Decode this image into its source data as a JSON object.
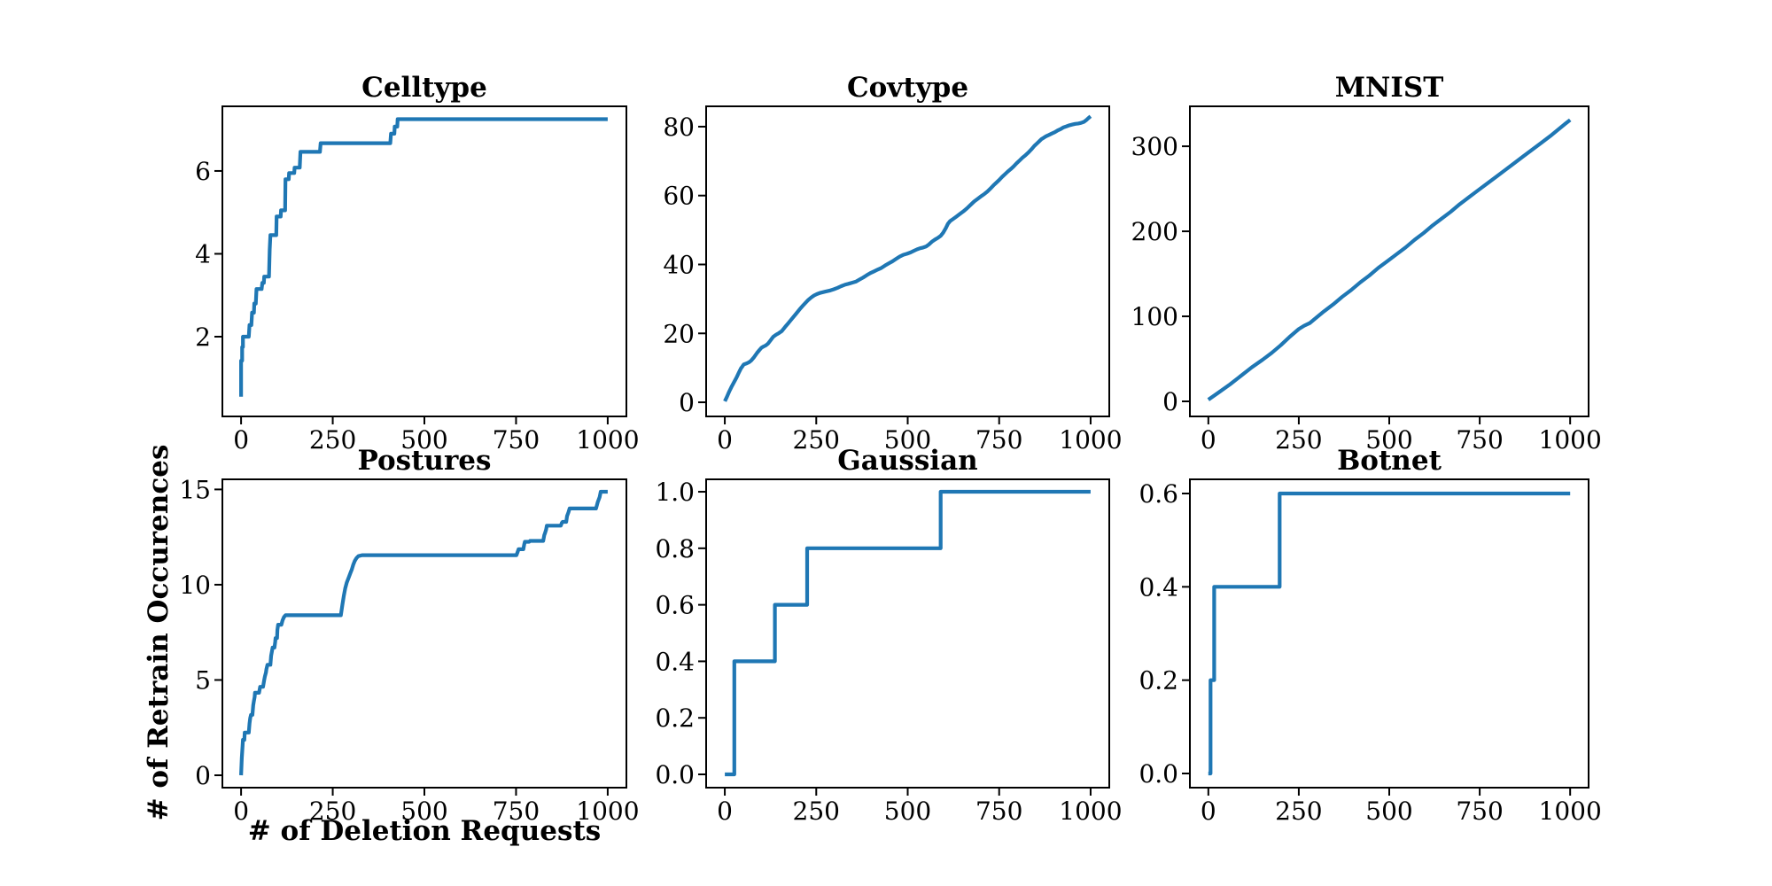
{
  "figure": {
    "background": "#ffffff",
    "line_color": "#1f77b4",
    "ylabel": "# of Retrain Occurences",
    "xlabel": "# of Deletion Requests"
  },
  "chart_data": [
    {
      "type": "line",
      "title": "Celltype",
      "xlabel": "",
      "ylabel": "",
      "xlim": [
        -51,
        1051
      ],
      "ylim": [
        0.075,
        7.56
      ],
      "x_ticks": [
        0,
        250,
        500,
        750,
        1000
      ],
      "x_tick_labels": [
        "0",
        "250",
        "500",
        "750",
        "1000"
      ],
      "y_ticks": [
        2,
        4,
        6
      ],
      "y_tick_labels": [
        "2",
        "4",
        "6"
      ],
      "grid": false,
      "points": [
        [
          0,
          0.55
        ],
        [
          0,
          1.42
        ],
        [
          3,
          1.42
        ],
        [
          3,
          1.75
        ],
        [
          5,
          1.75
        ],
        [
          5,
          2.0
        ],
        [
          21,
          2.0
        ],
        [
          23,
          2.28
        ],
        [
          28,
          2.28
        ],
        [
          30,
          2.58
        ],
        [
          35,
          2.58
        ],
        [
          36,
          2.8
        ],
        [
          40,
          2.8
        ],
        [
          42,
          3.15
        ],
        [
          56,
          3.15
        ],
        [
          58,
          3.3
        ],
        [
          62,
          3.3
        ],
        [
          63,
          3.45
        ],
        [
          76,
          3.45
        ],
        [
          78,
          4.1
        ],
        [
          80,
          4.45
        ],
        [
          96,
          4.45
        ],
        [
          97,
          4.9
        ],
        [
          108,
          4.9
        ],
        [
          109,
          5.05
        ],
        [
          120,
          5.05
        ],
        [
          121,
          5.8
        ],
        [
          130,
          5.8
        ],
        [
          131,
          5.95
        ],
        [
          145,
          5.95
        ],
        [
          146,
          6.08
        ],
        [
          160,
          6.08
        ],
        [
          162,
          6.46
        ],
        [
          215,
          6.46
        ],
        [
          217,
          6.67
        ],
        [
          407,
          6.67
        ],
        [
          409,
          6.9
        ],
        [
          418,
          6.9
        ],
        [
          419,
          7.07
        ],
        [
          426,
          7.07
        ],
        [
          427,
          7.25
        ],
        [
          1000,
          7.25
        ]
      ]
    },
    {
      "type": "line",
      "title": "Covtype",
      "xlabel": "",
      "ylabel": "",
      "xlim": [
        -51,
        1051
      ],
      "ylim": [
        -4.1,
        85.9
      ],
      "x_ticks": [
        0,
        250,
        500,
        750,
        1000
      ],
      "x_tick_labels": [
        "0",
        "250",
        "500",
        "750",
        "1000"
      ],
      "y_ticks": [
        0,
        20,
        40,
        60,
        80
      ],
      "y_tick_labels": [
        "0",
        "20",
        "40",
        "60",
        "80"
      ],
      "grid": false,
      "points": [
        [
          0,
          0.3
        ],
        [
          6,
          1.6
        ],
        [
          12,
          3.1
        ],
        [
          18,
          4.4
        ],
        [
          25,
          5.8
        ],
        [
          32,
          7.2
        ],
        [
          38,
          8.5
        ],
        [
          44,
          9.8
        ],
        [
          48,
          10.4
        ],
        [
          52,
          11.0
        ],
        [
          60,
          11.3
        ],
        [
          66,
          11.6
        ],
        [
          72,
          12.1
        ],
        [
          80,
          13.1
        ],
        [
          88,
          14.3
        ],
        [
          95,
          15.2
        ],
        [
          100,
          15.8
        ],
        [
          106,
          16.2
        ],
        [
          112,
          16.5
        ],
        [
          118,
          17.0
        ],
        [
          125,
          18.0
        ],
        [
          132,
          19.0
        ],
        [
          140,
          19.6
        ],
        [
          148,
          20.1
        ],
        [
          156,
          20.7
        ],
        [
          165,
          21.9
        ],
        [
          174,
          23.0
        ],
        [
          184,
          24.3
        ],
        [
          194,
          25.6
        ],
        [
          204,
          26.9
        ],
        [
          212,
          27.9
        ],
        [
          220,
          28.8
        ],
        [
          228,
          29.7
        ],
        [
          236,
          30.4
        ],
        [
          244,
          31.0
        ],
        [
          252,
          31.4
        ],
        [
          262,
          31.8
        ],
        [
          274,
          32.1
        ],
        [
          286,
          32.4
        ],
        [
          298,
          32.8
        ],
        [
          308,
          33.2
        ],
        [
          318,
          33.7
        ],
        [
          328,
          34.1
        ],
        [
          338,
          34.4
        ],
        [
          348,
          34.7
        ],
        [
          358,
          35.0
        ],
        [
          368,
          35.6
        ],
        [
          378,
          36.2
        ],
        [
          388,
          36.9
        ],
        [
          398,
          37.5
        ],
        [
          408,
          38.0
        ],
        [
          418,
          38.5
        ],
        [
          428,
          39.0
        ],
        [
          438,
          39.7
        ],
        [
          448,
          40.3
        ],
        [
          458,
          40.9
        ],
        [
          468,
          41.6
        ],
        [
          478,
          42.3
        ],
        [
          488,
          42.8
        ],
        [
          498,
          43.1
        ],
        [
          508,
          43.5
        ],
        [
          518,
          44.0
        ],
        [
          526,
          44.4
        ],
        [
          534,
          44.7
        ],
        [
          542,
          44.9
        ],
        [
          550,
          45.2
        ],
        [
          558,
          45.8
        ],
        [
          566,
          46.6
        ],
        [
          574,
          47.2
        ],
        [
          582,
          47.7
        ],
        [
          590,
          48.3
        ],
        [
          597,
          49.2
        ],
        [
          604,
          50.5
        ],
        [
          610,
          51.8
        ],
        [
          616,
          52.6
        ],
        [
          624,
          53.2
        ],
        [
          632,
          53.8
        ],
        [
          642,
          54.6
        ],
        [
          652,
          55.4
        ],
        [
          662,
          56.3
        ],
        [
          672,
          57.3
        ],
        [
          682,
          58.3
        ],
        [
          692,
          59.1
        ],
        [
          702,
          59.9
        ],
        [
          710,
          60.5
        ],
        [
          718,
          61.2
        ],
        [
          726,
          62.0
        ],
        [
          734,
          62.9
        ],
        [
          742,
          63.7
        ],
        [
          750,
          64.5
        ],
        [
          758,
          65.4
        ],
        [
          766,
          66.2
        ],
        [
          774,
          67.0
        ],
        [
          782,
          67.7
        ],
        [
          790,
          68.5
        ],
        [
          798,
          69.4
        ],
        [
          806,
          70.2
        ],
        [
          814,
          71.0
        ],
        [
          822,
          71.7
        ],
        [
          830,
          72.5
        ],
        [
          838,
          73.4
        ],
        [
          846,
          74.4
        ],
        [
          854,
          75.2
        ],
        [
          860,
          75.8
        ],
        [
          866,
          76.4
        ],
        [
          872,
          76.8
        ],
        [
          878,
          77.2
        ],
        [
          886,
          77.6
        ],
        [
          894,
          78.0
        ],
        [
          902,
          78.4
        ],
        [
          910,
          78.9
        ],
        [
          918,
          79.3
        ],
        [
          926,
          79.8
        ],
        [
          934,
          80.1
        ],
        [
          942,
          80.4
        ],
        [
          950,
          80.6
        ],
        [
          958,
          80.8
        ],
        [
          966,
          80.9
        ],
        [
          974,
          81.1
        ],
        [
          982,
          81.4
        ],
        [
          988,
          81.9
        ],
        [
          993,
          82.4
        ],
        [
          1000,
          83.0
        ]
      ]
    },
    {
      "type": "line",
      "title": "MNIST",
      "xlabel": "",
      "ylabel": "",
      "xlim": [
        -51,
        1051
      ],
      "ylim": [
        -17.7,
        347
      ],
      "x_ticks": [
        0,
        250,
        500,
        750,
        1000
      ],
      "x_tick_labels": [
        "0",
        "250",
        "500",
        "750",
        "1000"
      ],
      "y_ticks": [
        0,
        100,
        200,
        300
      ],
      "y_tick_labels": [
        "0",
        "100",
        "200",
        "300"
      ],
      "grid": false,
      "points": [
        [
          0,
          2
        ],
        [
          30,
          11
        ],
        [
          60,
          20
        ],
        [
          90,
          30
        ],
        [
          120,
          40
        ],
        [
          150,
          49
        ],
        [
          175,
          57
        ],
        [
          200,
          66
        ],
        [
          225,
          76
        ],
        [
          250,
          85
        ],
        [
          265,
          89
        ],
        [
          280,
          92
        ],
        [
          300,
          99
        ],
        [
          320,
          106
        ],
        [
          345,
          114
        ],
        [
          370,
          123
        ],
        [
          395,
          131
        ],
        [
          420,
          140
        ],
        [
          445,
          148
        ],
        [
          470,
          157
        ],
        [
          495,
          165
        ],
        [
          520,
          173
        ],
        [
          545,
          181
        ],
        [
          570,
          190
        ],
        [
          595,
          198
        ],
        [
          620,
          207
        ],
        [
          645,
          215
        ],
        [
          670,
          223
        ],
        [
          695,
          232
        ],
        [
          720,
          240
        ],
        [
          745,
          248
        ],
        [
          770,
          256
        ],
        [
          795,
          264
        ],
        [
          820,
          272
        ],
        [
          845,
          280
        ],
        [
          870,
          288
        ],
        [
          895,
          296
        ],
        [
          920,
          304
        ],
        [
          945,
          312
        ],
        [
          965,
          319
        ],
        [
          985,
          326
        ],
        [
          1000,
          331
        ]
      ]
    },
    {
      "type": "line",
      "title": "Postures",
      "xlabel": "# of Deletion Requests",
      "ylabel": "# of Retrain Occurences",
      "xlim": [
        -51,
        1051
      ],
      "ylim": [
        -0.65,
        15.53
      ],
      "x_ticks": [
        0,
        250,
        500,
        750,
        1000
      ],
      "x_tick_labels": [
        "0",
        "250",
        "500",
        "750",
        "1000"
      ],
      "y_ticks": [
        0,
        5,
        10,
        15
      ],
      "y_tick_labels": [
        "0",
        "5",
        "10",
        "15"
      ],
      "grid": false,
      "points": [
        [
          0,
          0
        ],
        [
          2,
          0.9
        ],
        [
          4,
          1.55
        ],
        [
          5,
          1.86
        ],
        [
          9,
          1.86
        ],
        [
          10,
          2.24
        ],
        [
          21,
          2.24
        ],
        [
          23,
          2.7
        ],
        [
          25,
          3.0
        ],
        [
          27,
          3.17
        ],
        [
          31,
          3.17
        ],
        [
          33,
          3.67
        ],
        [
          35,
          3.9
        ],
        [
          37,
          4.1
        ],
        [
          38,
          4.33
        ],
        [
          49,
          4.33
        ],
        [
          52,
          4.64
        ],
        [
          60,
          4.64
        ],
        [
          63,
          5.0
        ],
        [
          65,
          5.19
        ],
        [
          68,
          5.4
        ],
        [
          69,
          5.57
        ],
        [
          72,
          5.8
        ],
        [
          80,
          5.8
        ],
        [
          82,
          6.27
        ],
        [
          85,
          6.6
        ],
        [
          86,
          6.7
        ],
        [
          91,
          6.7
        ],
        [
          93,
          7.0
        ],
        [
          94,
          7.2
        ],
        [
          98,
          7.2
        ],
        [
          99,
          7.63
        ],
        [
          101,
          7.9
        ],
        [
          110,
          7.9
        ],
        [
          113,
          8.13
        ],
        [
          117,
          8.3
        ],
        [
          121,
          8.4
        ],
        [
          272,
          8.4
        ],
        [
          276,
          8.9
        ],
        [
          280,
          9.4
        ],
        [
          284,
          9.8
        ],
        [
          288,
          10.1
        ],
        [
          294,
          10.4
        ],
        [
          298,
          10.6
        ],
        [
          302,
          10.8
        ],
        [
          306,
          11.05
        ],
        [
          310,
          11.25
        ],
        [
          315,
          11.4
        ],
        [
          320,
          11.5
        ],
        [
          330,
          11.55
        ],
        [
          751,
          11.55
        ],
        [
          754,
          11.7
        ],
        [
          757,
          11.86
        ],
        [
          770,
          11.86
        ],
        [
          772,
          12.1
        ],
        [
          774,
          12.25
        ],
        [
          786,
          12.25
        ],
        [
          788,
          12.3
        ],
        [
          824,
          12.3
        ],
        [
          827,
          12.6
        ],
        [
          829,
          12.7
        ],
        [
          832,
          12.9
        ],
        [
          834,
          13.1
        ],
        [
          872,
          13.1
        ],
        [
          875,
          13.25
        ],
        [
          877,
          13.3
        ],
        [
          887,
          13.3
        ],
        [
          889,
          13.6
        ],
        [
          893,
          13.8
        ],
        [
          896,
          14.0
        ],
        [
          968,
          14.0
        ],
        [
          971,
          14.2
        ],
        [
          973,
          14.34
        ],
        [
          978,
          14.6
        ],
        [
          981,
          14.88
        ],
        [
          1000,
          14.88
        ]
      ]
    },
    {
      "type": "line",
      "title": "Gaussian",
      "xlabel": "",
      "ylabel": "",
      "xlim": [
        -51,
        1051
      ],
      "ylim": [
        -0.047,
        1.044
      ],
      "x_ticks": [
        0,
        250,
        500,
        750,
        1000
      ],
      "x_tick_labels": [
        "0",
        "250",
        "500",
        "750",
        "1000"
      ],
      "y_ticks": [
        0.0,
        0.2,
        0.4,
        0.6,
        0.8,
        1.0
      ],
      "y_tick_labels": [
        "0.0",
        "0.2",
        "0.4",
        "0.6",
        "0.8",
        "1.0"
      ],
      "grid": false,
      "points": [
        [
          0,
          0
        ],
        [
          26,
          0
        ],
        [
          26,
          0.4
        ],
        [
          137,
          0.4
        ],
        [
          137,
          0.6
        ],
        [
          225,
          0.6
        ],
        [
          225,
          0.8
        ],
        [
          590,
          0.8
        ],
        [
          590,
          1.0
        ],
        [
          1000,
          1.0
        ]
      ]
    },
    {
      "type": "line",
      "title": "Botnet",
      "xlabel": "",
      "ylabel": "",
      "xlim": [
        -51,
        1051
      ],
      "ylim": [
        -0.0304,
        0.6304
      ],
      "x_ticks": [
        0,
        250,
        500,
        750,
        1000
      ],
      "x_tick_labels": [
        "0",
        "250",
        "500",
        "750",
        "1000"
      ],
      "y_ticks": [
        0.0,
        0.2,
        0.4,
        0.6
      ],
      "y_tick_labels": [
        "0.0",
        "0.2",
        "0.4",
        "0.6"
      ],
      "grid": false,
      "points": [
        [
          0,
          0
        ],
        [
          6,
          0
        ],
        [
          6,
          0.2
        ],
        [
          16,
          0.2
        ],
        [
          16,
          0.4
        ],
        [
          197,
          0.4
        ],
        [
          197,
          0.6
        ],
        [
          1000,
          0.6
        ]
      ]
    }
  ]
}
